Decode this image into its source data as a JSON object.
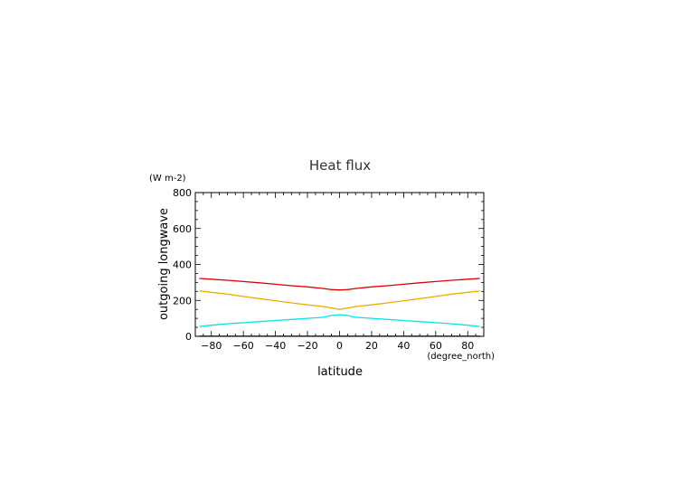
{
  "chart_data": {
    "type": "line",
    "title": "Heat flux",
    "xlabel": "latitude",
    "ylabel": "outgoing longwave",
    "x_units": "(degree_north)",
    "y_units": "(W m-2)",
    "xlim": [
      -90,
      90
    ],
    "ylim": [
      0,
      800
    ],
    "x_ticks": [
      -80,
      -60,
      -40,
      -20,
      0,
      20,
      40,
      60,
      80
    ],
    "y_ticks": [
      0,
      200,
      400,
      600,
      800
    ],
    "x": [
      -87.5,
      -80,
      -70,
      -60,
      -50,
      -40,
      -30,
      -20,
      -10,
      -5,
      0,
      5,
      10,
      20,
      30,
      40,
      50,
      60,
      70,
      80,
      87.5
    ],
    "series": [
      {
        "color": "#e00000",
        "values": [
          322,
          318,
          312,
          305,
          298,
          290,
          282,
          275,
          266,
          260,
          258,
          260,
          266,
          275,
          282,
          290,
          298,
          305,
          312,
          318,
          322
        ]
      },
      {
        "color": "#f2a900",
        "values": [
          252,
          245,
          235,
          222,
          210,
          198,
          186,
          175,
          166,
          158,
          150,
          158,
          166,
          175,
          186,
          198,
          210,
          222,
          235,
          245,
          252
        ]
      },
      {
        "color": "#00e5e5",
        "values": [
          55,
          62,
          70,
          76,
          82,
          88,
          94,
          100,
          106,
          116,
          120,
          116,
          106,
          100,
          94,
          88,
          82,
          76,
          70,
          62,
          55
        ]
      },
      {
        "color": "#009f3c",
        "values": [
          2,
          2,
          2,
          2,
          2,
          2,
          2,
          2,
          2,
          2,
          2,
          2,
          2,
          2,
          2,
          2,
          2,
          2,
          2,
          2,
          2
        ]
      }
    ],
    "grid": false,
    "legend": "none"
  }
}
